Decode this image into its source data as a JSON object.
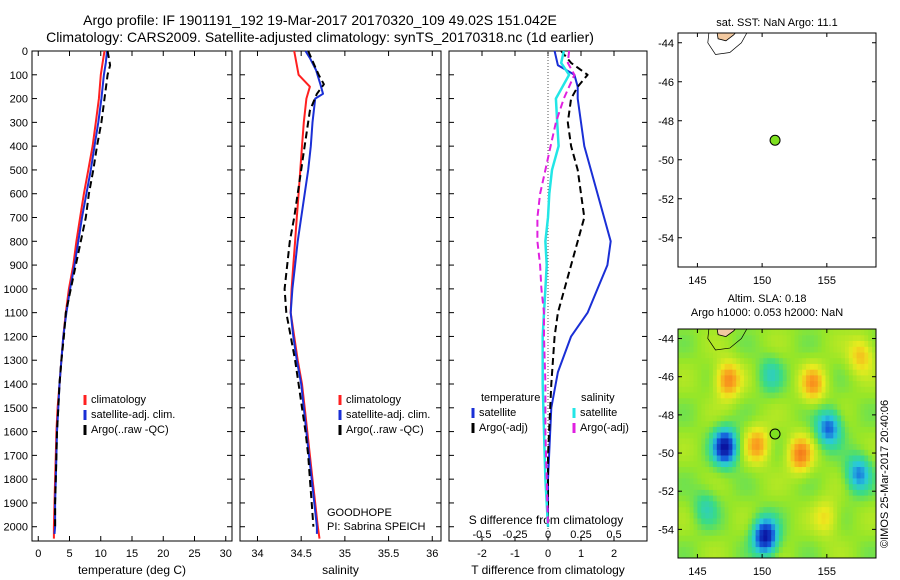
{
  "title_line1": "Argo profile: IF 1901191_192 19-Mar-2017 20170320_109 49.02S 151.042E",
  "title_line2": "Climatology: CARS2009. Satellite-adjusted climatology: synTS_20170318.nc (1d earlier)",
  "colors": {
    "climatology": "#ff2020",
    "satellite": "#1a2fd6",
    "argo": "#000000",
    "sat_s": "#22e6e6",
    "argo_s": "#e020e0",
    "marker": "#7ee020"
  },
  "chart_data": [
    {
      "type": "line",
      "id": "temperature",
      "xlabel": "temperature (deg C)",
      "xlim": [
        -1,
        31
      ],
      "ylim": [
        2060,
        0
      ],
      "xticks": [
        "0",
        "5",
        "10",
        "15",
        "20",
        "25",
        "30"
      ],
      "yticks": [
        "0",
        "100",
        "200",
        "300",
        "400",
        "500",
        "600",
        "700",
        "800",
        "900",
        "1000",
        "1100",
        "1200",
        "1300",
        "1400",
        "1500",
        "1600",
        "1700",
        "1800",
        "1900",
        "2000"
      ],
      "legend": [
        "climatology",
        "satellite-adj. clim.",
        "Argo(..raw -QC)"
      ],
      "series": [
        {
          "name": "climatology",
          "points": [
            [
              10.6,
              0
            ],
            [
              10.3,
              50
            ],
            [
              10.0,
              100
            ],
            [
              9.7,
              200
            ],
            [
              9.2,
              300
            ],
            [
              8.7,
              400
            ],
            [
              8.0,
              500
            ],
            [
              7.3,
              600
            ],
            [
              6.7,
              700
            ],
            [
              6.1,
              800
            ],
            [
              5.6,
              900
            ],
            [
              4.9,
              1000
            ],
            [
              4.4,
              1100
            ],
            [
              4.0,
              1200
            ],
            [
              3.7,
              1300
            ],
            [
              3.4,
              1400
            ],
            [
              3.1,
              1500
            ],
            [
              2.9,
              1600
            ],
            [
              2.8,
              1700
            ],
            [
              2.7,
              1800
            ],
            [
              2.6,
              1900
            ],
            [
              2.5,
              2000
            ],
            [
              2.5,
              2050
            ]
          ]
        },
        {
          "name": "satellite-adj. clim.",
          "points": [
            [
              11.0,
              0
            ],
            [
              10.8,
              50
            ],
            [
              10.5,
              100
            ],
            [
              10.1,
              200
            ],
            [
              9.6,
              300
            ],
            [
              9.0,
              400
            ],
            [
              8.4,
              500
            ],
            [
              7.7,
              600
            ],
            [
              7.0,
              700
            ],
            [
              6.4,
              800
            ],
            [
              5.8,
              900
            ],
            [
              5.1,
              1000
            ],
            [
              4.5,
              1100
            ],
            [
              4.0,
              1200
            ],
            [
              3.7,
              1300
            ],
            [
              3.4,
              1400
            ],
            [
              3.2,
              1500
            ],
            [
              3.0,
              1600
            ],
            [
              2.9,
              1700
            ],
            [
              2.8,
              1800
            ],
            [
              2.7,
              1900
            ],
            [
              2.7,
              2000
            ],
            [
              2.6,
              2030
            ]
          ]
        },
        {
          "name": "Argo(..raw -QC)",
          "points": [
            [
              11.1,
              0
            ],
            [
              11.3,
              30
            ],
            [
              11.5,
              60
            ],
            [
              11.1,
              100
            ],
            [
              10.6,
              200
            ],
            [
              10.1,
              300
            ],
            [
              9.4,
              400
            ],
            [
              8.8,
              500
            ],
            [
              8.1,
              600
            ],
            [
              7.6,
              700
            ],
            [
              6.8,
              800
            ],
            [
              6.0,
              900
            ],
            [
              5.2,
              1000
            ],
            [
              4.4,
              1100
            ],
            [
              4.1,
              1200
            ],
            [
              3.7,
              1300
            ],
            [
              3.4,
              1400
            ],
            [
              3.2,
              1500
            ],
            [
              3.0,
              1600
            ],
            [
              2.9,
              1700
            ],
            [
              2.8,
              1800
            ],
            [
              2.7,
              1900
            ],
            [
              2.7,
              2000
            ]
          ]
        }
      ]
    },
    {
      "type": "line",
      "id": "salinity",
      "xlabel": "salinity",
      "xlim": [
        33.8,
        36.1
      ],
      "ylim": [
        2060,
        0
      ],
      "xticks": [
        "34",
        "34.5",
        "35",
        "35.5",
        "36"
      ],
      "legend": [
        "climatology",
        "satellite-adj. clim.",
        "Argo(..raw -QC)"
      ],
      "annotation": [
        "GOODHOPE",
        "PI: Sabrina SPEICH"
      ],
      "series": [
        {
          "name": "climatology",
          "points": [
            [
              34.42,
              0
            ],
            [
              34.47,
              100
            ],
            [
              34.6,
              150
            ],
            [
              34.56,
              200
            ],
            [
              34.53,
              300
            ],
            [
              34.51,
              400
            ],
            [
              34.49,
              500
            ],
            [
              34.47,
              600
            ],
            [
              34.45,
              700
            ],
            [
              34.43,
              800
            ],
            [
              34.41,
              900
            ],
            [
              34.39,
              1000
            ],
            [
              34.38,
              1100
            ],
            [
              34.42,
              1200
            ],
            [
              34.46,
              1300
            ],
            [
              34.51,
              1400
            ],
            [
              34.54,
              1500
            ],
            [
              34.57,
              1600
            ],
            [
              34.6,
              1700
            ],
            [
              34.63,
              1800
            ],
            [
              34.66,
              1900
            ],
            [
              34.69,
              2000
            ],
            [
              34.71,
              2050
            ]
          ]
        },
        {
          "name": "satellite-adj. clim.",
          "points": [
            [
              34.55,
              0
            ],
            [
              34.6,
              30
            ],
            [
              34.67,
              80
            ],
            [
              34.72,
              140
            ],
            [
              34.75,
              180
            ],
            [
              34.66,
              200
            ],
            [
              34.63,
              300
            ],
            [
              34.61,
              400
            ],
            [
              34.58,
              500
            ],
            [
              34.54,
              600
            ],
            [
              34.5,
              700
            ],
            [
              34.46,
              800
            ],
            [
              34.43,
              900
            ],
            [
              34.4,
              1000
            ],
            [
              34.38,
              1100
            ],
            [
              34.41,
              1200
            ],
            [
              34.45,
              1300
            ],
            [
              34.5,
              1400
            ],
            [
              34.53,
              1500
            ],
            [
              34.56,
              1600
            ],
            [
              34.59,
              1700
            ],
            [
              34.62,
              1800
            ],
            [
              34.65,
              1900
            ],
            [
              34.68,
              2000
            ],
            [
              34.68,
              2030
            ]
          ]
        },
        {
          "name": "Argo(..raw -QC)",
          "points": [
            [
              34.58,
              0
            ],
            [
              34.64,
              50
            ],
            [
              34.7,
              100
            ],
            [
              34.76,
              140
            ],
            [
              34.68,
              180
            ],
            [
              34.6,
              250
            ],
            [
              34.56,
              350
            ],
            [
              34.52,
              450
            ],
            [
              34.5,
              500
            ],
            [
              34.46,
              600
            ],
            [
              34.42,
              700
            ],
            [
              34.37,
              800
            ],
            [
              34.34,
              900
            ],
            [
              34.31,
              1000
            ],
            [
              34.33,
              1100
            ],
            [
              34.38,
              1200
            ],
            [
              34.43,
              1300
            ],
            [
              34.47,
              1400
            ],
            [
              34.51,
              1500
            ],
            [
              34.55,
              1600
            ],
            [
              34.58,
              1700
            ],
            [
              34.6,
              1800
            ],
            [
              34.62,
              1900
            ],
            [
              34.64,
              2000
            ]
          ]
        }
      ]
    },
    {
      "type": "line",
      "id": "difference",
      "xlabel": "T difference from climatology",
      "xlim": [
        -3,
        3
      ],
      "ylim": [
        2060,
        0
      ],
      "xticks": [
        "-2",
        "-1",
        "0",
        "1",
        "2"
      ],
      "top_xlabel": "S difference from climatology",
      "top_xticks": [
        "-0.5",
        "-0.25",
        "0",
        "0.25",
        "0.5"
      ],
      "legend_titles": [
        "temperature",
        "salinity"
      ],
      "legend": [
        "satellite",
        "Argo(-adj)",
        "satellite",
        "Argo(-adj)"
      ],
      "series": [
        {
          "name": "satellite",
          "group": "temperature",
          "points": [
            [
              0.2,
              0
            ],
            [
              0.3,
              60
            ],
            [
              0.8,
              100
            ],
            [
              0.9,
              150
            ],
            [
              0.9,
              200
            ],
            [
              1.0,
              300
            ],
            [
              1.1,
              400
            ],
            [
              1.3,
              500
            ],
            [
              1.7,
              700
            ],
            [
              1.9,
              800
            ],
            [
              1.8,
              900
            ],
            [
              1.5,
              1000
            ],
            [
              1.2,
              1100
            ],
            [
              0.7,
              1200
            ],
            [
              0.3,
              1350
            ],
            [
              0.1,
              1500
            ],
            [
              0.0,
              1800
            ],
            [
              0.0,
              2000
            ]
          ]
        },
        {
          "name": "Argo(-adj)",
          "group": "temperature",
          "points": [
            [
              0.4,
              0
            ],
            [
              0.7,
              50
            ],
            [
              1.2,
              100
            ],
            [
              0.9,
              150
            ],
            [
              0.7,
              200
            ],
            [
              0.6,
              300
            ],
            [
              0.7,
              400
            ],
            [
              0.9,
              500
            ],
            [
              1.0,
              600
            ],
            [
              1.1,
              700
            ],
            [
              0.9,
              800
            ],
            [
              0.7,
              900
            ],
            [
              0.5,
              1000
            ],
            [
              0.3,
              1100
            ],
            [
              0.2,
              1200
            ],
            [
              0.1,
              1400
            ],
            [
              0.0,
              1700
            ],
            [
              0.0,
              2000
            ]
          ]
        },
        {
          "name": "satellite",
          "group": "salinity",
          "points": [
            [
              0.12,
              0
            ],
            [
              0.1,
              50
            ],
            [
              0.16,
              100
            ],
            [
              0.06,
              200
            ],
            [
              0.07,
              300
            ],
            [
              0.08,
              400
            ],
            [
              0.03,
              500
            ],
            [
              0.01,
              600
            ],
            [
              0.0,
              700
            ],
            [
              -0.02,
              800
            ],
            [
              -0.01,
              900
            ],
            [
              -0.02,
              1000
            ],
            [
              -0.03,
              1100
            ],
            [
              -0.04,
              1200
            ],
            [
              -0.04,
              1400
            ],
            [
              -0.03,
              1600
            ],
            [
              -0.02,
              1800
            ],
            [
              0.0,
              2000
            ]
          ]
        },
        {
          "name": "Argo(-adj)",
          "group": "salinity",
          "points": [
            [
              0.16,
              0
            ],
            [
              0.15,
              50
            ],
            [
              0.2,
              100
            ],
            [
              0.12,
              200
            ],
            [
              0.06,
              300
            ],
            [
              0.02,
              400
            ],
            [
              -0.02,
              500
            ],
            [
              -0.06,
              600
            ],
            [
              -0.08,
              700
            ],
            [
              -0.08,
              800
            ],
            [
              -0.06,
              900
            ],
            [
              -0.05,
              1000
            ],
            [
              -0.03,
              1100
            ],
            [
              -0.03,
              1200
            ],
            [
              -0.02,
              1400
            ],
            [
              -0.02,
              1600
            ],
            [
              -0.01,
              1800
            ],
            [
              0.0,
              2000
            ]
          ]
        }
      ]
    },
    {
      "type": "scatter",
      "id": "sst-map",
      "title": "sat. SST: NaN Argo: 11.1",
      "xlim": [
        143.5,
        158.8
      ],
      "ylim": [
        -55.5,
        -43.5
      ],
      "xticks": [
        "145",
        "150",
        "155"
      ],
      "yticks": [
        "-44",
        "-46",
        "-48",
        "-50",
        "-52",
        "-54"
      ],
      "points": [
        [
          151.0,
          -49.0
        ]
      ]
    },
    {
      "type": "heatmap",
      "id": "sla-map",
      "title_line1": "Altim. SLA: 0.18",
      "title_line2": "Argo h1000: 0.053 h2000: NaN",
      "xlim": [
        143.5,
        158.8
      ],
      "ylim": [
        -55.5,
        -43.5
      ],
      "xticks": [
        "145",
        "150",
        "155"
      ],
      "yticks": [
        "-44",
        "-46",
        "-48",
        "-50",
        "-52",
        "-54"
      ],
      "points": [
        [
          151.0,
          -49.0
        ]
      ],
      "blobs": [
        {
          "lon": 147.0,
          "lat": -49.8,
          "value": -1.0
        },
        {
          "lon": 150.1,
          "lat": -54.5,
          "value": -1.0
        },
        {
          "lon": 155.0,
          "lat": -48.8,
          "value": -0.7
        },
        {
          "lon": 157.3,
          "lat": -51.2,
          "value": -0.6
        },
        {
          "lon": 152.8,
          "lat": -50.2,
          "value": 0.6
        },
        {
          "lon": 149.5,
          "lat": -49.7,
          "value": 0.5
        },
        {
          "lon": 147.2,
          "lat": -46.3,
          "value": 0.6
        },
        {
          "lon": 153.8,
          "lat": -46.5,
          "value": 0.5
        },
        {
          "lon": 145.5,
          "lat": -53.0,
          "value": -0.3
        },
        {
          "lon": 157.5,
          "lat": -45.0,
          "value": 0.4
        },
        {
          "lon": 150.5,
          "lat": -46.0,
          "value": -0.3
        },
        {
          "lon": 154.8,
          "lat": -53.5,
          "value": 0.3
        }
      ]
    }
  ],
  "watermark": "©IMOS 25-Mar-2017 20:40:06"
}
